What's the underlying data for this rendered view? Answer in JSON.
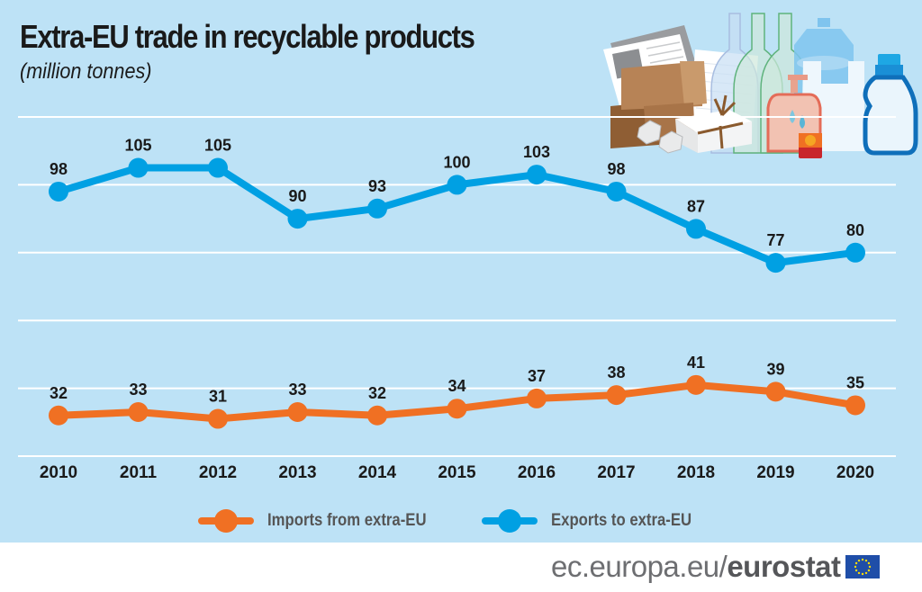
{
  "header": {
    "title": "Extra-EU trade in recyclable products",
    "subtitle": "(million tonnes)"
  },
  "illustration": {
    "description": "recyclable products: newspapers, cardboard boxes, crumpled paper, bundled paper stack, glass bottles, soap dispenser, plastic water jug, plastic bag, detergent bottle"
  },
  "chart_data": {
    "type": "line",
    "title": "Extra-EU trade in recyclable products",
    "subtitle": "(million tonnes)",
    "xlabel": "",
    "ylabel": "",
    "x": [
      "2010",
      "2011",
      "2012",
      "2013",
      "2014",
      "2015",
      "2016",
      "2017",
      "2018",
      "2019",
      "2020"
    ],
    "ylim": [
      20,
      120
    ],
    "yticks": [
      20,
      40,
      60,
      80,
      100,
      120
    ],
    "ytick_labels_visible": false,
    "grid": true,
    "legend_position": "bottom-center",
    "series": [
      {
        "name": "Imports from extra-EU",
        "color": "#f07023",
        "values": [
          32,
          33,
          31,
          33,
          32,
          34,
          37,
          38,
          41,
          39,
          35
        ]
      },
      {
        "name": "Exports to extra-EU",
        "color": "#00a0e3",
        "values": [
          98,
          105,
          105,
          90,
          93,
          100,
          103,
          98,
          87,
          77,
          80
        ]
      }
    ]
  },
  "colors": {
    "background": "#bde2f6",
    "gridline": "#ffffff",
    "imports": "#f07023",
    "exports": "#00a0e3",
    "text": "#1a1a1a"
  },
  "legend": {
    "items": [
      {
        "label": "Imports from extra-EU",
        "color": "#f07023"
      },
      {
        "label": "Exports to extra-EU",
        "color": "#00a0e3"
      }
    ]
  },
  "footer": {
    "url_prefix": "ec.europa.eu/",
    "url_brand": "eurostat",
    "flag_icon": "eu-flag-icon"
  }
}
